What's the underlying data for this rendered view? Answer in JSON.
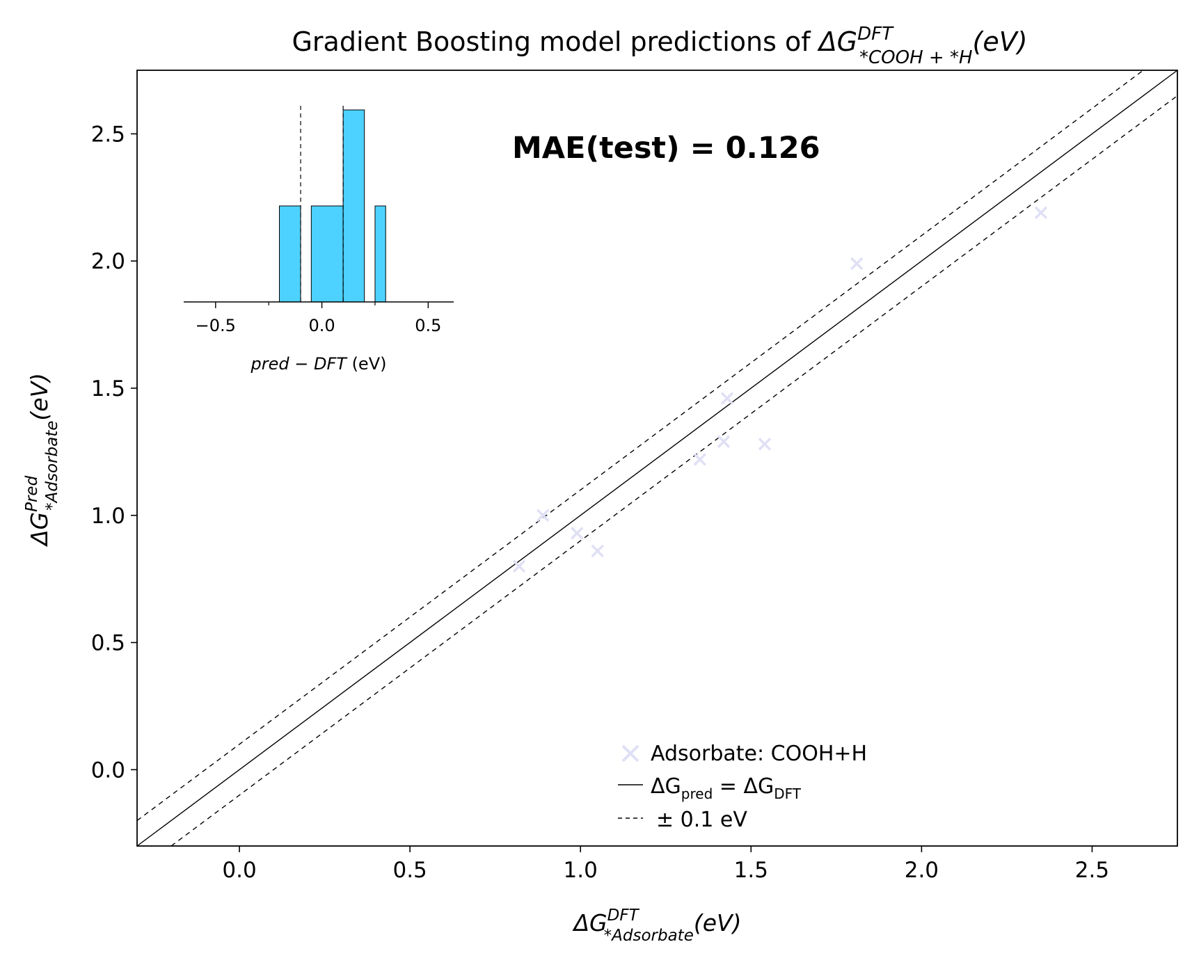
{
  "chart_data": {
    "type": "scatter",
    "title": {
      "prefix": "Gradient Boosting model predictions of ",
      "delta": "ΔG",
      "sup": "DFT",
      "sub": "*COOH + *H",
      "suffix": "(eV)"
    },
    "xlabel": {
      "delta": "ΔG",
      "sup": "DFT",
      "sub": "*Adsorbate",
      "suffix": "(eV)"
    },
    "ylabel": {
      "delta": "ΔG",
      "sup": "Pred",
      "sub": "*Adsorbate",
      "suffix": "(eV)"
    },
    "xlim": [
      -0.3,
      2.75
    ],
    "ylim": [
      -0.3,
      2.75
    ],
    "xticks": [
      "0.0",
      "0.5",
      "1.0",
      "1.5",
      "2.0",
      "2.5"
    ],
    "yticks": [
      "0.0",
      "0.5",
      "1.0",
      "1.5",
      "2.0",
      "2.5"
    ],
    "series": [
      {
        "name": "Adsorbate: COOH+H",
        "marker": "x",
        "color": "#e0e0f5",
        "x": [
          0.82,
          0.89,
          0.99,
          1.05,
          1.35,
          1.42,
          1.43,
          1.54,
          1.81,
          2.35
        ],
        "y": [
          0.8,
          1.0,
          0.93,
          0.86,
          1.22,
          1.29,
          1.46,
          1.28,
          1.99,
          2.19
        ]
      }
    ],
    "reference_lines": [
      {
        "label_main": "ΔG",
        "label_sub1": "pred",
        "label_mid": " = ΔG",
        "label_sub2": "DFT",
        "offset": 0,
        "style": "solid"
      },
      {
        "label": "±  0.1 eV",
        "offset": 0.1,
        "style": "dashed"
      }
    ],
    "annotation": {
      "text": "MAE(test) = 0.126",
      "color": "#00bfff"
    },
    "legend_position": "lower-right",
    "grid": false,
    "inset_histogram": {
      "type": "bar",
      "xlabel_italic": "pred − DFT",
      "xlabel_unit": " (eV)",
      "xlim": [
        -0.65,
        0.62
      ],
      "xticks": [
        "−0.5",
        "0.0",
        "0.5"
      ],
      "color": "#4dd2ff",
      "bins": [
        {
          "x0": -0.2,
          "x1": -0.1,
          "count": 1
        },
        {
          "x0": -0.05,
          "x1": 0.1,
          "count": 1
        },
        {
          "x0": 0.1,
          "x1": 0.2,
          "count": 2
        },
        {
          "x0": 0.25,
          "x1": 0.3,
          "count": 1
        }
      ],
      "vlines": [
        -0.1,
        0.1
      ]
    }
  }
}
